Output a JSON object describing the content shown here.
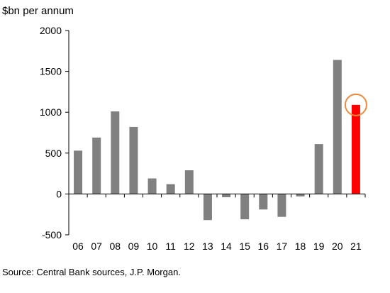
{
  "chart_data": {
    "type": "bar",
    "title": "",
    "ylabel": "$bn per annum",
    "xlabel": "",
    "categories": [
      "06",
      "07",
      "08",
      "09",
      "10",
      "11",
      "12",
      "13",
      "14",
      "15",
      "16",
      "17",
      "18",
      "19",
      "20",
      "21"
    ],
    "values": [
      530,
      690,
      1010,
      820,
      190,
      120,
      290,
      -320,
      -40,
      -310,
      -190,
      -280,
      -30,
      610,
      1640,
      1090
    ],
    "ylim": [
      -500,
      2000
    ],
    "yticks": [
      2000,
      1500,
      1000,
      500,
      0,
      -500
    ],
    "highlight_index": 15,
    "grid": false,
    "legend": "none",
    "source": "Source:  Central Bank sources, J.P. Morgan."
  },
  "colors": {
    "bar": "#808080",
    "highlight_bar": "#ff0000",
    "highlight_circle": "#f0883c",
    "axis": "#000000"
  }
}
